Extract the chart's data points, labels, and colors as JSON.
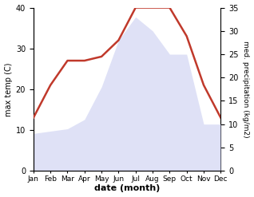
{
  "months": [
    "Jan",
    "Feb",
    "Mar",
    "Apr",
    "May",
    "Jun",
    "Jul",
    "Aug",
    "Sep",
    "Oct",
    "Nov",
    "Dec"
  ],
  "temperature": [
    13,
    21,
    27,
    27,
    28,
    32,
    40,
    40,
    40,
    33,
    21,
    13
  ],
  "precipitation": [
    8,
    8.5,
    9,
    11,
    18,
    28,
    33,
    30,
    25,
    25,
    10,
    10
  ],
  "temp_color": "#c0392b",
  "precip_fill_color": "#c5caf0",
  "temp_ylim": [
    0,
    40
  ],
  "precip_ylim": [
    0,
    35
  ],
  "temp_yticks": [
    0,
    10,
    20,
    30,
    40
  ],
  "precip_yticks": [
    0,
    5,
    10,
    15,
    20,
    25,
    30,
    35
  ],
  "xlabel": "date (month)",
  "ylabel_left": "max temp (C)",
  "ylabel_right": "med. precipitation (kg/m2)",
  "background_color": "#ffffff",
  "temp_linewidth": 1.8,
  "figwidth": 3.18,
  "figheight": 2.47,
  "dpi": 100
}
